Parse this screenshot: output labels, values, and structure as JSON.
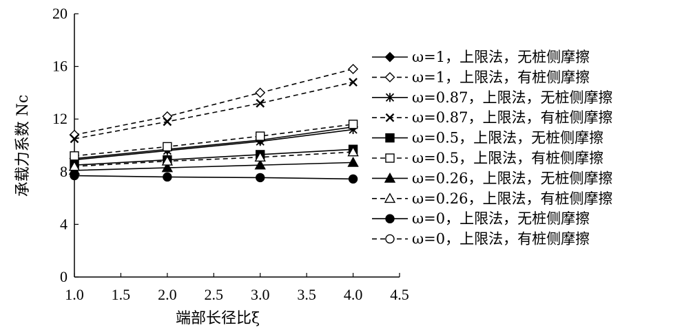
{
  "chart_data": {
    "type": "line",
    "xlabel": "端部长径比ξ",
    "ylabel": "承载力系数 Nc",
    "xlim": [
      1.0,
      4.5
    ],
    "ylim": [
      0,
      20
    ],
    "xticks": [
      "1.0",
      "1.5",
      "2.0",
      "2.5",
      "3.0",
      "3.5",
      "4.0",
      "4.5"
    ],
    "yticks": [
      "0",
      "4",
      "8",
      "12",
      "16",
      "20"
    ],
    "x": [
      1.0,
      2.0,
      3.0,
      4.0
    ],
    "grid": false,
    "legend_position": "right",
    "series": [
      {
        "name": "ω=1，上限法，无桩侧摩擦",
        "values": [
          9.0,
          9.7,
          10.4,
          11.4
        ],
        "marker": "diamond",
        "fill": "filled",
        "dash": "solid"
      },
      {
        "name": "ω=1，上限法，有桩侧摩擦",
        "values": [
          10.8,
          12.2,
          14.0,
          15.8
        ],
        "marker": "diamond",
        "fill": "open",
        "dash": "dashed"
      },
      {
        "name": "ω=0.87，上限法，无桩侧摩擦",
        "values": [
          8.9,
          9.6,
          10.3,
          11.2
        ],
        "marker": "star",
        "fill": "none",
        "dash": "solid"
      },
      {
        "name": "ω=0.87，上限法，有桩侧摩擦",
        "values": [
          10.5,
          11.8,
          13.2,
          14.8
        ],
        "marker": "x",
        "fill": "none",
        "dash": "dashed"
      },
      {
        "name": "ω=0.5，上限法，无桩侧摩擦",
        "values": [
          8.5,
          8.9,
          9.3,
          9.7
        ],
        "marker": "square",
        "fill": "filled",
        "dash": "solid"
      },
      {
        "name": "ω=0.5，上限法，有桩侧摩擦",
        "values": [
          9.2,
          9.9,
          10.7,
          11.6
        ],
        "marker": "square",
        "fill": "open",
        "dash": "dashed"
      },
      {
        "name": "ω=0.26，上限法，无桩侧摩擦",
        "values": [
          8.1,
          8.3,
          8.5,
          8.7
        ],
        "marker": "triangle",
        "fill": "filled",
        "dash": "solid"
      },
      {
        "name": "ω=0.26，上限法，有桩侧摩擦",
        "values": [
          8.4,
          8.8,
          9.1,
          9.5
        ],
        "marker": "triangle",
        "fill": "open",
        "dash": "dashed"
      },
      {
        "name": "ω=0，上限法，无桩侧摩擦",
        "values": [
          7.7,
          7.6,
          7.55,
          7.45
        ],
        "marker": "circle",
        "fill": "filled",
        "dash": "solid"
      },
      {
        "name": "ω=0，上限法，有桩侧摩擦",
        "values": [
          null,
          null,
          null,
          null
        ],
        "marker": "circle",
        "fill": "open",
        "dash": "dashed"
      }
    ]
  }
}
